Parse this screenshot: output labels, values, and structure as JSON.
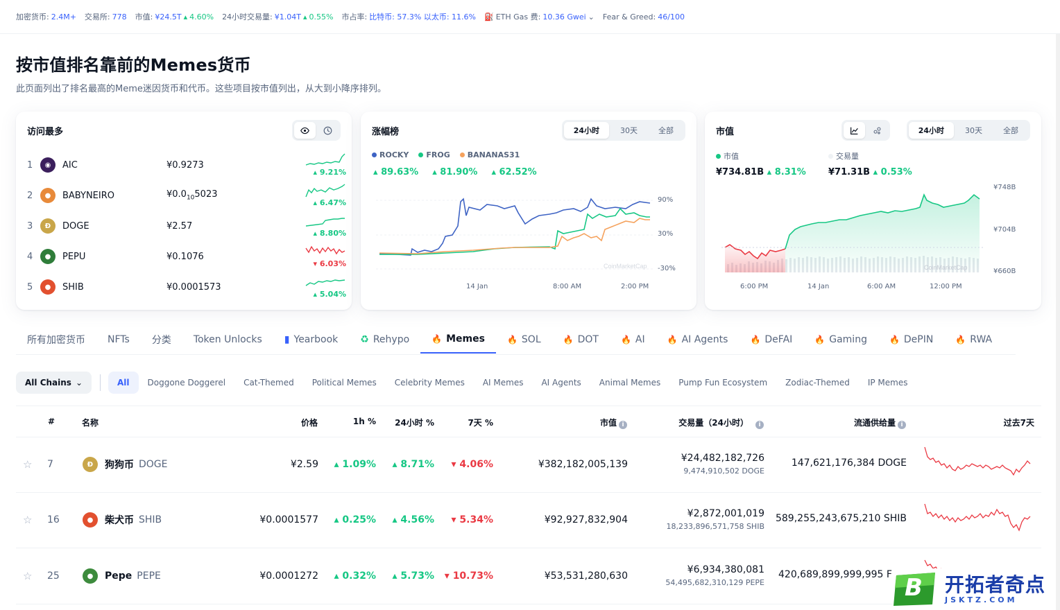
{
  "topbar": {
    "cryptos_label": "加密货币:",
    "cryptos": "2.4M+",
    "exchanges_label": "交易所:",
    "exchanges": "778",
    "mcap_label": "市值:",
    "mcap": "¥24.5T",
    "mcap_change": "4.60%",
    "vol_label": "24小时交易量:",
    "vol": "¥1.04T",
    "vol_change": "0.55%",
    "dom_label": "市占率:",
    "dom": "比特币: 57.3% 以太币: 11.6%",
    "gas_label": "ETH Gas 费:",
    "gas": "10.36 Gwei",
    "fg_label": "Fear & Greed:",
    "fg": "46/100"
  },
  "page": {
    "title": "按市值排名靠前的Memes货币",
    "subtitle": "此页面列出了排名最高的Meme迷因货币和代币。这些项目按市值列出，从大到小降序排列。"
  },
  "most_visited": {
    "title": "访问最多",
    "items": [
      {
        "rank": "1",
        "name": "AIC",
        "price": "¥0.9273",
        "change": "9.21%",
        "dir": "up"
      },
      {
        "rank": "2",
        "name": "BABYNEIRO",
        "price_main": "¥0.0",
        "price_sub": "10",
        "price_rest": "5023",
        "change": "6.47%",
        "dir": "up"
      },
      {
        "rank": "3",
        "name": "DOGE",
        "price": "¥2.57",
        "change": "8.80%",
        "dir": "up"
      },
      {
        "rank": "4",
        "name": "PEPU",
        "price": "¥0.1076",
        "change": "6.03%",
        "dir": "down"
      },
      {
        "rank": "5",
        "name": "SHIB",
        "price": "¥0.0001573",
        "change": "5.04%",
        "dir": "up"
      }
    ]
  },
  "gainers": {
    "title": "涨幅榜",
    "tabs": [
      "24小时",
      "30天",
      "全部"
    ],
    "series": [
      {
        "name": "ROCKY",
        "change": "89.63%",
        "color": "#3e63c4"
      },
      {
        "name": "FROG",
        "change": "81.90%",
        "color": "#16c784"
      },
      {
        "name": "BANANAS31",
        "change": "62.52%",
        "color": "#f5a25d"
      }
    ],
    "y_ticks": [
      "90%",
      "30%",
      "-30%"
    ],
    "x_ticks": [
      "14 Jan",
      "8:00 AM",
      "2:00 PM"
    ]
  },
  "mcap_card": {
    "title": "市值",
    "tabs": [
      "24小时",
      "30天",
      "全部"
    ],
    "mcap_label": "市值",
    "mcap_value": "¥734.81B",
    "mcap_change": "8.31%",
    "vol_label": "交易量",
    "vol_value": "¥71.31B",
    "vol_change": "0.53%",
    "y_ticks": [
      "¥748B",
      "¥704B",
      "¥660B"
    ],
    "x_ticks": [
      "6:00 PM",
      "14 Jan",
      "6:00 AM",
      "12:00 PM"
    ]
  },
  "tabs": [
    "所有加密货币",
    "NFTs",
    "分类",
    "Token Unlocks",
    "Yearbook",
    "Rehypo",
    "Memes",
    "SOL",
    "DOT",
    "AI",
    "AI Agents",
    "DeFAI",
    "Gaming",
    "DePIN",
    "RWA"
  ],
  "categories": {
    "chains": "All Chains",
    "items": [
      "All",
      "Doggone Doggerel",
      "Cat-Themed",
      "Political Memes",
      "Celebrity Memes",
      "AI Memes",
      "AI Agents",
      "Animal Memes",
      "Pump Fun Ecosystem",
      "Zodiac-Themed",
      "IP Memes"
    ]
  },
  "table": {
    "headers": {
      "rank": "#",
      "name": "名称",
      "price": "价格",
      "h1": "1h %",
      "h24": "24小时 %",
      "d7": "7天 %",
      "mcap": "市值",
      "vol": "交易量（24小时）",
      "supply": "流通供给量",
      "spark": "过去7天"
    },
    "rows": [
      {
        "rank": "7",
        "name": "狗狗币",
        "symbol": "DOGE",
        "price": "¥2.59",
        "h1": "1.09%",
        "h24": "8.71%",
        "d7": "4.06%",
        "mcap": "¥382,182,005,139",
        "vol": "¥24,482,182,726",
        "vol_coin": "9,474,910,502 DOGE",
        "supply": "147,621,176,384 DOGE"
      },
      {
        "rank": "16",
        "name": "柴犬币",
        "symbol": "SHIB",
        "price": "¥0.0001577",
        "h1": "0.25%",
        "h24": "4.56%",
        "d7": "5.34%",
        "mcap": "¥92,927,832,904",
        "vol": "¥2,872,001,019",
        "vol_coin": "18,233,896,571,758 SHIB",
        "supply": "589,255,243,675,210 SHIB"
      },
      {
        "rank": "25",
        "name": "Pepe",
        "symbol": "PEPE",
        "price": "¥0.0001272",
        "h1": "0.32%",
        "h24": "5.73%",
        "d7": "10.73%",
        "mcap": "¥53,531,280,630",
        "vol": "¥6,934,380,081",
        "vol_coin": "54,495,682,310,129 PEPE",
        "supply": "420,689,899,999,995 F"
      }
    ]
  },
  "watermark": {
    "cn": "开拓者奇点",
    "en": "JSKTZ.COM",
    "letter": "B"
  },
  "colors": {
    "up": "#16c784",
    "down": "#ea3943",
    "accent": "#3861fb"
  }
}
